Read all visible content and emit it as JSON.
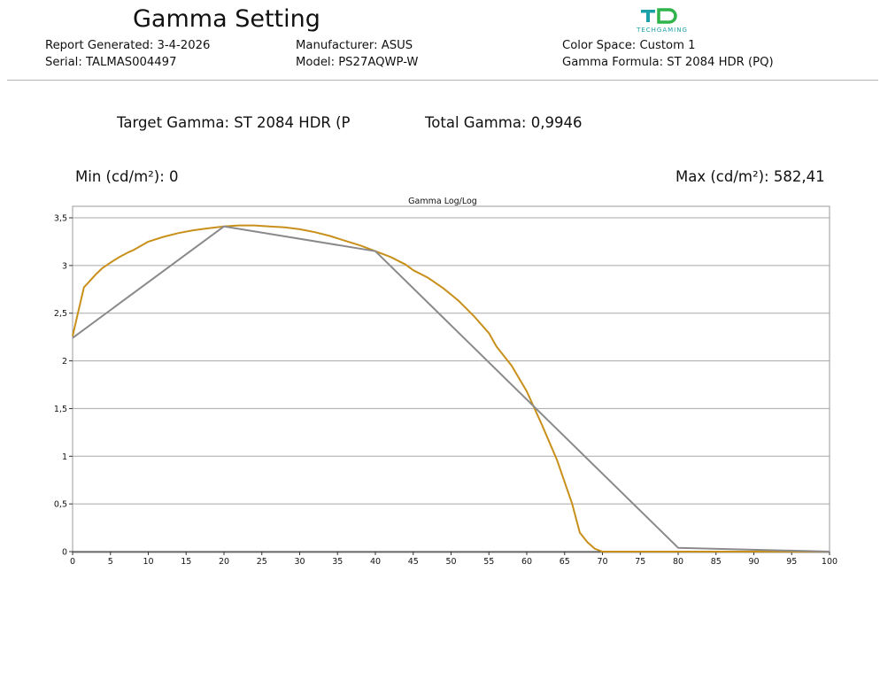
{
  "header": {
    "title": "Gamma Setting",
    "report_generated": "Report Generated: 3-4-2026",
    "serial": "Serial: TALMAS004497",
    "manufacturer": "Manufacturer: ASUS",
    "model": "Model: PS27AQWP-W",
    "color_space": "Color Space: Custom 1",
    "gamma_formula": "Gamma Formula: ST 2084 HDR (PQ)",
    "logo_text": "TECHGAMING",
    "logo_color": "#1aa0a8",
    "logo_accent": "#2fb34a"
  },
  "summary": {
    "target_gamma": "Target Gamma: ST 2084 HDR (P",
    "total_gamma": "Total Gamma:  0,9946",
    "min_label": "Min (cd/m²): 0",
    "max_label": "Max (cd/m²): 582,41"
  },
  "chart_data": {
    "type": "line",
    "title": "Gamma Log/Log",
    "xlim": [
      0,
      100
    ],
    "ylim": [
      0,
      3.5
    ],
    "x_ticks": [
      0,
      5,
      10,
      15,
      20,
      25,
      30,
      35,
      40,
      45,
      50,
      55,
      60,
      65,
      70,
      75,
      80,
      85,
      90,
      95,
      100
    ],
    "y_ticks": [
      0,
      0.5,
      1,
      1.5,
      2,
      2.5,
      3,
      3.5
    ],
    "x_tick_labels": [
      "0",
      "5",
      "10",
      "15",
      "20",
      "25",
      "30",
      "35",
      "40",
      "45",
      "50",
      "55",
      "60",
      "65",
      "70",
      "75",
      "80",
      "85",
      "90",
      "95",
      "100"
    ],
    "y_tick_labels": [
      "0",
      "0,5",
      "1",
      "1,5",
      "2",
      "2,5",
      "3",
      "3,5"
    ],
    "grid": true,
    "series": [
      {
        "color": "#c8901a",
        "x": [
          0,
          0.7,
          1.5,
          2.3,
          3.1,
          3.9,
          5,
          6.2,
          7.4,
          8,
          10,
          12,
          14,
          16,
          18,
          20,
          22,
          24,
          26,
          28,
          30,
          32,
          34,
          36,
          38,
          40,
          42,
          44,
          45,
          47,
          49,
          51,
          53,
          55,
          56,
          58,
          60,
          62,
          64,
          66,
          67,
          68,
          69,
          70,
          75,
          80,
          85,
          90,
          95,
          100
        ],
        "y": [
          2.26,
          2.5,
          2.77,
          2.84,
          2.91,
          2.97,
          3.03,
          3.09,
          3.14,
          3.16,
          3.25,
          3.3,
          3.34,
          3.37,
          3.39,
          3.41,
          3.42,
          3.42,
          3.41,
          3.4,
          3.38,
          3.35,
          3.31,
          3.26,
          3.21,
          3.15,
          3.09,
          3.01,
          2.95,
          2.87,
          2.76,
          2.63,
          2.47,
          2.29,
          2.15,
          1.95,
          1.68,
          1.33,
          0.96,
          0.5,
          0.2,
          0.1,
          0.03,
          0,
          0,
          0,
          0,
          0,
          0,
          0
        ]
      },
      {
        "color": "#8a8a8a",
        "x": [
          0,
          20,
          40,
          80,
          100
        ],
        "y": [
          2.24,
          3.41,
          3.15,
          0.04,
          0.0
        ]
      }
    ]
  }
}
